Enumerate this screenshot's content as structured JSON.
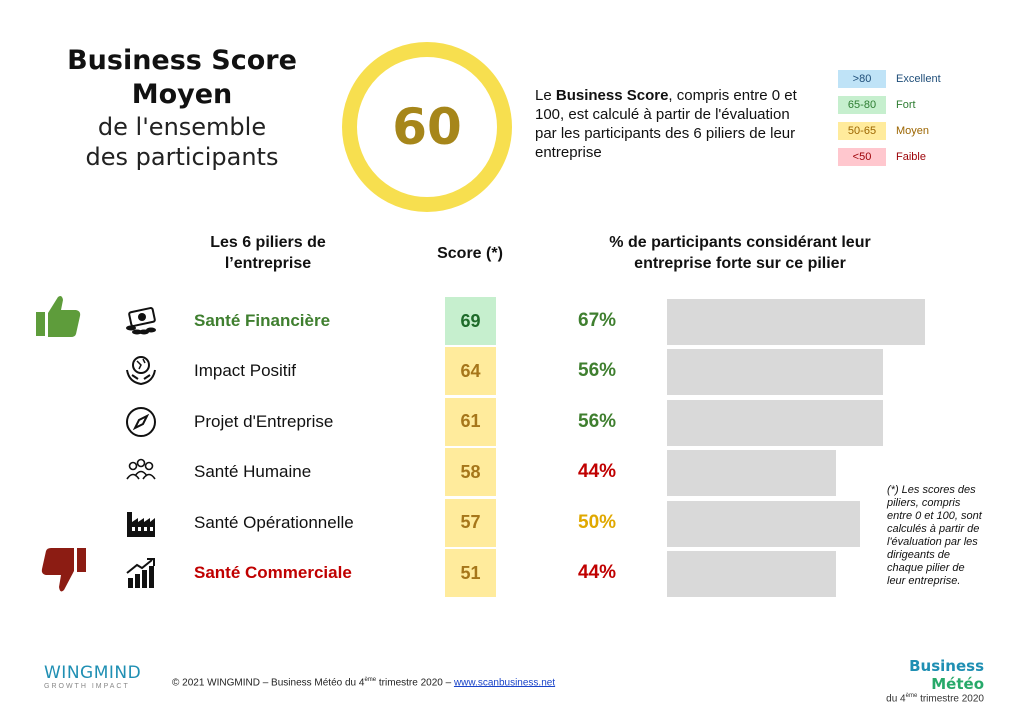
{
  "header": {
    "title_line1": "Business Score",
    "title_line2": "Moyen",
    "title_line3": "de l'ensemble",
    "title_line4": "des participants",
    "score": "60",
    "description_prefix": "Le ",
    "description_bold": "Business Score",
    "description_rest": ", compris entre 0 et 100, est calculé à partir de l'évaluation par les participants des 6 piliers de leur entreprise"
  },
  "legend": [
    {
      "range": ">80",
      "label": "Excellent",
      "bg": "#bfe3f7",
      "fg": "#1f4e79"
    },
    {
      "range": "65-80",
      "label": "Fort",
      "bg": "#c6efce",
      "fg": "#2e7d32"
    },
    {
      "range": "50-65",
      "label": "Moyen",
      "bg": "#ffeb9c",
      "fg": "#9c6500"
    },
    {
      "range": "<50",
      "label": "Faible",
      "bg": "#ffc7ce",
      "fg": "#9c0006"
    }
  ],
  "columns": {
    "pillars": "Les 6 piliers de l’entreprise",
    "score": "Score (*)",
    "pct": "% de participants considérant leur entreprise forte sur ce pilier"
  },
  "rows": [
    {
      "name": "Santé Financière",
      "score": "69",
      "pct": "67%",
      "pct_value": 67,
      "icon": "money-icon",
      "name_style": "green",
      "score_bg": "#c6efce",
      "score_fg": "#1e6b2a",
      "pct_color": "#3f7f2f"
    },
    {
      "name": "Impact Positif",
      "score": "64",
      "pct": "56%",
      "pct_value": 56,
      "icon": "hands-globe-icon",
      "name_style": "normal",
      "score_bg": "#ffeb9c",
      "score_fg": "#a6761a",
      "pct_color": "#3f7f2f"
    },
    {
      "name": "Projet d'Entreprise",
      "score": "61",
      "pct": "56%",
      "pct_value": 56,
      "icon": "compass-icon",
      "name_style": "normal",
      "score_bg": "#ffeb9c",
      "score_fg": "#a6761a",
      "pct_color": "#3f7f2f"
    },
    {
      "name": "Santé Humaine",
      "score": "58",
      "pct": "44%",
      "pct_value": 44,
      "icon": "people-icon",
      "name_style": "normal",
      "score_bg": "#ffeb9c",
      "score_fg": "#a6761a",
      "pct_color": "#c00000"
    },
    {
      "name": "Santé Opérationnelle",
      "score": "57",
      "pct": "50%",
      "pct_value": 50,
      "icon": "factory-icon",
      "name_style": "normal",
      "score_bg": "#ffeb9c",
      "score_fg": "#a6761a",
      "pct_color": "#e0a800"
    },
    {
      "name": "Santé Commerciale",
      "score": "51",
      "pct": "44%",
      "pct_value": 44,
      "icon": "growth-chart-icon",
      "name_style": "red",
      "score_bg": "#ffeb9c",
      "score_fg": "#a6761a",
      "pct_color": "#c00000"
    }
  ],
  "note": "(*) Les scores des piliers, compris entre 0 et 100, sont calculés à partir de l'évaluation par les dirigeants de chaque pilier de leur entreprise.",
  "footer": {
    "brand": "WINGMIND",
    "brand_sub": "GROWTH IMPACT",
    "copyright_prefix": "© 2021 WINGMIND – Business Météo du 4",
    "copyright_sup": "ème",
    "copyright_suffix": " trimestre 2020 – ",
    "link": "www.scanbusiness.net",
    "right_title_a": "Business ",
    "right_title_b": "Météo",
    "right_sub_prefix": "du 4",
    "right_sub_sup": "ème",
    "right_sub_suffix": " trimestre 2020"
  }
}
